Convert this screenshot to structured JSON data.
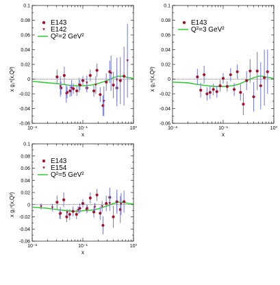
{
  "colors": {
    "e143_marker": "#a3122b",
    "other_marker": "#a3122b",
    "error_bar": "#7a7fe0",
    "curve": "#22c922"
  },
  "chart_data": [
    {
      "type": "scatter",
      "xlabel": "x",
      "ylabel": "x g₁ⁿ(x,Q²)",
      "xscale": "log",
      "xlim": [
        0.01,
        1
      ],
      "ylim": [
        -0.06,
        0.1
      ],
      "x_tick_labels": [
        "10⁻²",
        "10⁻¹",
        "10⁰"
      ],
      "y_tick_labels": [
        "-0.06",
        "-0.04",
        "-0.02",
        "0",
        "0.02",
        "0.04",
        "0.06",
        "0.08",
        "0.1"
      ],
      "legend_position": "top-left",
      "series": [
        {
          "name": "E143",
          "marker": "circle",
          "points": [
            {
              "x": 0.031,
              "y": 0.003,
              "err": 0.01
            },
            {
              "x": 0.037,
              "y": -0.012,
              "err": 0.009
            },
            {
              "x": 0.043,
              "y": 0.005,
              "err": 0.012
            },
            {
              "x": 0.049,
              "y": -0.018,
              "err": 0.008
            },
            {
              "x": 0.056,
              "y": -0.016,
              "err": 0.008
            },
            {
              "x": 0.065,
              "y": -0.013,
              "err": 0.007
            },
            {
              "x": 0.076,
              "y": -0.016,
              "err": 0.007
            },
            {
              "x": 0.088,
              "y": -0.008,
              "err": 0.007
            },
            {
              "x": 0.1,
              "y": -0.002,
              "err": 0.006
            },
            {
              "x": 0.12,
              "y": -0.012,
              "err": 0.006
            },
            {
              "x": 0.14,
              "y": 0.005,
              "err": 0.008
            },
            {
              "x": 0.165,
              "y": -0.016,
              "err": 0.008
            },
            {
              "x": 0.19,
              "y": 0.012,
              "err": 0.009
            },
            {
              "x": 0.22,
              "y": -0.021,
              "err": 0.01
            },
            {
              "x": 0.25,
              "y": -0.036,
              "err": 0.014
            },
            {
              "x": 0.29,
              "y": -0.004,
              "err": 0.012
            },
            {
              "x": 0.34,
              "y": 0.01,
              "err": 0.015
            },
            {
              "x": 0.4,
              "y": -0.008,
              "err": 0.018
            },
            {
              "x": 0.47,
              "y": -0.012,
              "err": 0.025
            },
            {
              "x": 0.55,
              "y": -0.002,
              "err": 0.032
            },
            {
              "x": 0.65,
              "y": 0.004,
              "err": 0.04
            }
          ]
        },
        {
          "name": "E142",
          "marker": "triangle",
          "points": [
            {
              "x": 0.036,
              "y": -0.01,
              "err": 0.014
            },
            {
              "x": 0.047,
              "y": -0.02,
              "err": 0.012
            },
            {
              "x": 0.06,
              "y": -0.012,
              "err": 0.011
            },
            {
              "x": 0.084,
              "y": -0.008,
              "err": 0.01
            },
            {
              "x": 0.12,
              "y": -0.005,
              "err": 0.01
            },
            {
              "x": 0.18,
              "y": -0.008,
              "err": 0.012
            },
            {
              "x": 0.26,
              "y": -0.03,
              "err": 0.02
            },
            {
              "x": 0.36,
              "y": 0.008,
              "err": 0.024
            },
            {
              "x": 0.47,
              "y": -0.001,
              "err": 0.03
            },
            {
              "x": 0.76,
              "y": 0.025,
              "err": 0.05
            }
          ]
        }
      ],
      "curve": {
        "name": "Q²=2 GeV²",
        "x": [
          0.01,
          0.02,
          0.03,
          0.05,
          0.07,
          0.1,
          0.15,
          0.2,
          0.3,
          0.4,
          0.5,
          0.6,
          0.8,
          1.0
        ],
        "y": [
          -0.003,
          -0.005,
          -0.006,
          -0.008,
          -0.009,
          -0.009,
          -0.008,
          -0.006,
          -0.002,
          0.002,
          0.004,
          0.004,
          0.002,
          0.001
        ]
      }
    },
    {
      "type": "scatter",
      "xlabel": "x",
      "ylabel": "x g₁ⁿ(x,Q²)",
      "xscale": "log",
      "xlim": [
        0.01,
        1
      ],
      "ylim": [
        -0.06,
        0.1
      ],
      "x_tick_labels": [
        "10⁻²",
        "10⁻¹",
        "10⁰"
      ],
      "y_tick_labels": [
        "-0.06",
        "-0.04",
        "-0.02",
        "0",
        "0.02",
        "0.04",
        "0.06",
        "0.08",
        "0.1"
      ],
      "legend_position": "top-left",
      "series": [
        {
          "name": "E143",
          "marker": "circle",
          "points": [
            {
              "x": 0.031,
              "y": 0.003,
              "err": 0.011
            },
            {
              "x": 0.036,
              "y": -0.015,
              "err": 0.01
            },
            {
              "x": 0.042,
              "y": 0.006,
              "err": 0.012
            },
            {
              "x": 0.048,
              "y": -0.02,
              "err": 0.009
            },
            {
              "x": 0.055,
              "y": -0.018,
              "err": 0.009
            },
            {
              "x": 0.064,
              "y": -0.014,
              "err": 0.008
            },
            {
              "x": 0.075,
              "y": -0.017,
              "err": 0.008
            },
            {
              "x": 0.087,
              "y": -0.009,
              "err": 0.008
            },
            {
              "x": 0.1,
              "y": 0.001,
              "err": 0.007
            },
            {
              "x": 0.12,
              "y": -0.01,
              "err": 0.007
            },
            {
              "x": 0.14,
              "y": 0.006,
              "err": 0.009
            },
            {
              "x": 0.165,
              "y": -0.014,
              "err": 0.009
            },
            {
              "x": 0.19,
              "y": 0.01,
              "err": 0.01
            },
            {
              "x": 0.22,
              "y": -0.018,
              "err": 0.011
            },
            {
              "x": 0.25,
              "y": -0.034,
              "err": 0.015
            },
            {
              "x": 0.29,
              "y": -0.002,
              "err": 0.013
            },
            {
              "x": 0.34,
              "y": 0.011,
              "err": 0.016
            },
            {
              "x": 0.4,
              "y": -0.024,
              "err": 0.02
            },
            {
              "x": 0.47,
              "y": 0.011,
              "err": 0.026
            },
            {
              "x": 0.55,
              "y": -0.009,
              "err": 0.032
            },
            {
              "x": 0.65,
              "y": 0.002,
              "err": 0.038
            },
            {
              "x": 0.75,
              "y": 0.01,
              "err": 0.03
            }
          ]
        }
      ],
      "curve": {
        "name": "Q²=3 GeV²",
        "x": [
          0.01,
          0.02,
          0.03,
          0.05,
          0.07,
          0.1,
          0.15,
          0.2,
          0.3,
          0.4,
          0.5,
          0.6,
          0.8,
          1.0
        ],
        "y": [
          -0.004,
          -0.005,
          -0.007,
          -0.009,
          -0.01,
          -0.01,
          -0.009,
          -0.007,
          -0.002,
          0.002,
          0.004,
          0.004,
          0.002,
          0.001
        ]
      }
    },
    {
      "type": "scatter",
      "xlabel": "x",
      "ylabel": "x g₁ⁿ(x,Q²)",
      "xscale": "log",
      "xlim": [
        0.01,
        1
      ],
      "ylim": [
        -0.06,
        0.1
      ],
      "x_tick_labels": [
        "10⁻²",
        "10⁻¹",
        "10⁰"
      ],
      "y_tick_labels": [
        "-0.06",
        "-0.04",
        "-0.02",
        "0",
        "0.02",
        "0.04",
        "0.06",
        "0.08",
        "0.1"
      ],
      "legend_position": "top-left",
      "series": [
        {
          "name": "E143",
          "marker": "circle",
          "points": [
            {
              "x": 0.031,
              "y": 0.004,
              "err": 0.011
            },
            {
              "x": 0.036,
              "y": -0.014,
              "err": 0.01
            },
            {
              "x": 0.042,
              "y": 0.008,
              "err": 0.012
            },
            {
              "x": 0.048,
              "y": -0.02,
              "err": 0.009
            },
            {
              "x": 0.055,
              "y": -0.016,
              "err": 0.009
            },
            {
              "x": 0.064,
              "y": -0.011,
              "err": 0.008
            },
            {
              "x": 0.075,
              "y": -0.016,
              "err": 0.008
            },
            {
              "x": 0.087,
              "y": -0.006,
              "err": 0.008
            },
            {
              "x": 0.1,
              "y": 0.002,
              "err": 0.007
            },
            {
              "x": 0.12,
              "y": -0.007,
              "err": 0.007
            },
            {
              "x": 0.14,
              "y": 0.011,
              "err": 0.009
            },
            {
              "x": 0.165,
              "y": -0.012,
              "err": 0.009
            },
            {
              "x": 0.19,
              "y": 0.016,
              "err": 0.01
            },
            {
              "x": 0.22,
              "y": -0.014,
              "err": 0.011
            },
            {
              "x": 0.25,
              "y": -0.034,
              "err": 0.015
            },
            {
              "x": 0.29,
              "y": 0.002,
              "err": 0.013
            },
            {
              "x": 0.34,
              "y": 0.012,
              "err": 0.016
            },
            {
              "x": 0.4,
              "y": -0.02,
              "err": 0.018
            },
            {
              "x": 0.47,
              "y": 0.005,
              "err": 0.02
            },
            {
              "x": 0.55,
              "y": -0.008,
              "err": 0.022
            },
            {
              "x": 0.65,
              "y": 0.005,
              "err": 0.018
            }
          ]
        },
        {
          "name": "E154",
          "marker": "triangle",
          "points": [
            {
              "x": 0.015,
              "y": -0.003,
              "err": 0.005
            },
            {
              "x": 0.025,
              "y": -0.005,
              "err": 0.006
            },
            {
              "x": 0.035,
              "y": -0.016,
              "err": 0.007
            },
            {
              "x": 0.049,
              "y": -0.013,
              "err": 0.006
            },
            {
              "x": 0.081,
              "y": -0.009,
              "err": 0.006
            },
            {
              "x": 0.122,
              "y": -0.006,
              "err": 0.006
            },
            {
              "x": 0.173,
              "y": -0.004,
              "err": 0.007
            },
            {
              "x": 0.24,
              "y": -0.003,
              "err": 0.009
            },
            {
              "x": 0.34,
              "y": 0.002,
              "err": 0.012
            },
            {
              "x": 0.47,
              "y": 0.004,
              "err": 0.015
            },
            {
              "x": 0.57,
              "y": 0.001,
              "err": 0.018
            }
          ]
        }
      ],
      "curve": {
        "name": "Q²=5 GeV²",
        "x": [
          0.01,
          0.02,
          0.03,
          0.05,
          0.07,
          0.1,
          0.15,
          0.2,
          0.3,
          0.4,
          0.5,
          0.6,
          0.8,
          1.0
        ],
        "y": [
          -0.004,
          -0.006,
          -0.008,
          -0.01,
          -0.011,
          -0.01,
          -0.009,
          -0.007,
          -0.002,
          0.002,
          0.004,
          0.004,
          0.002,
          0.001
        ]
      }
    }
  ]
}
